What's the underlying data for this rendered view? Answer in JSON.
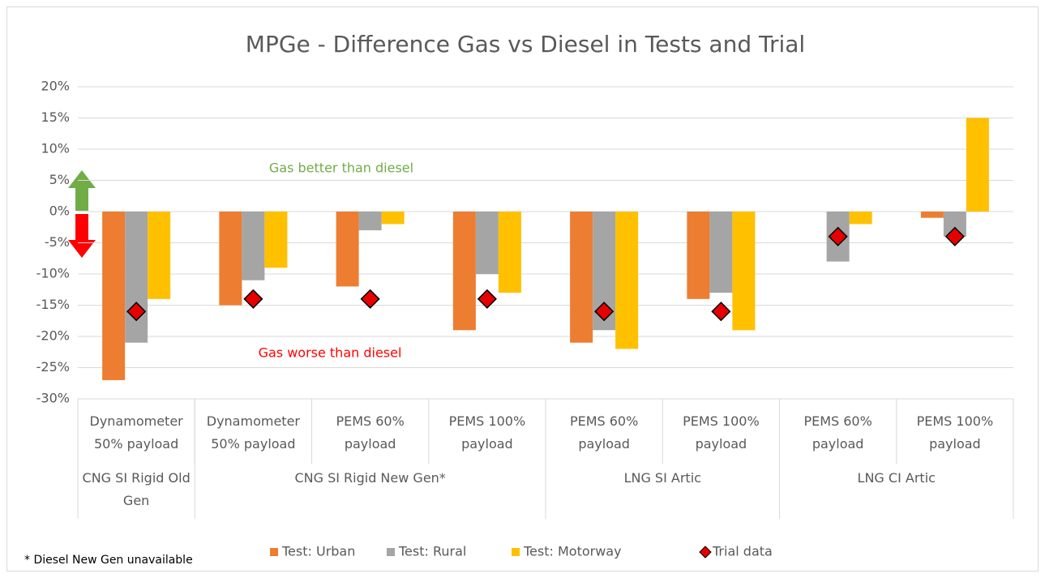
{
  "chart_data": {
    "type": "bar",
    "title": "MPGe - Difference Gas vs Diesel in Tests and Trial",
    "groups": [
      {
        "label": "CNG SI Rigid Old Gen",
        "categories": [
          "Dynamometer 50% payload"
        ]
      },
      {
        "label": "CNG SI Rigid New Gen*",
        "categories": [
          "Dynamometer 50% payload",
          "PEMS 60% payload",
          "PEMS 100% payload"
        ]
      },
      {
        "label": "LNG SI Artic",
        "categories": [
          "PEMS 60% payload",
          "PEMS 100% payload"
        ]
      },
      {
        "label": "LNG CI Artic",
        "categories": [
          "PEMS 60% payload",
          "PEMS 100% payload"
        ]
      }
    ],
    "series": [
      {
        "name": "Test: Urban",
        "color": "#ed7d31",
        "values": [
          -27,
          -15,
          -12,
          -19,
          -21,
          -14,
          null,
          -1
        ]
      },
      {
        "name": "Test: Rural",
        "color": "#a5a5a5",
        "values": [
          -21,
          -11,
          -3,
          -10,
          -19,
          -13,
          -8,
          -4
        ]
      },
      {
        "name": "Test: Motorway",
        "color": "#ffc000",
        "values": [
          -14,
          -9,
          -2,
          -13,
          -22,
          -19,
          -2,
          15
        ]
      },
      {
        "name": "Trial data",
        "type": "scatter",
        "color": "#e60000",
        "values": [
          -16,
          -14,
          -14,
          -14,
          -16,
          -16,
          -4,
          -4
        ]
      }
    ],
    "ylim": [
      -30,
      20
    ],
    "yticks": [
      {
        "value": -30,
        "label": "-30%"
      },
      {
        "value": -25,
        "label": "-25%"
      },
      {
        "value": -20,
        "label": "-20%"
      },
      {
        "value": -15,
        "label": "-15%"
      },
      {
        "value": -10,
        "label": "-10%"
      },
      {
        "value": -5,
        "label": "-5%"
      },
      {
        "value": 0,
        "label": "0%"
      },
      {
        "value": 5,
        "label": "5%"
      },
      {
        "value": 10,
        "label": "10%"
      },
      {
        "value": 15,
        "label": "15%"
      },
      {
        "value": 20,
        "label": "20%"
      }
    ],
    "grid": true,
    "legend": "bottom",
    "annotations": [
      "Gas better than diesel",
      "Gas worse than diesel",
      "* Diesel New Gen unavailable"
    ]
  }
}
